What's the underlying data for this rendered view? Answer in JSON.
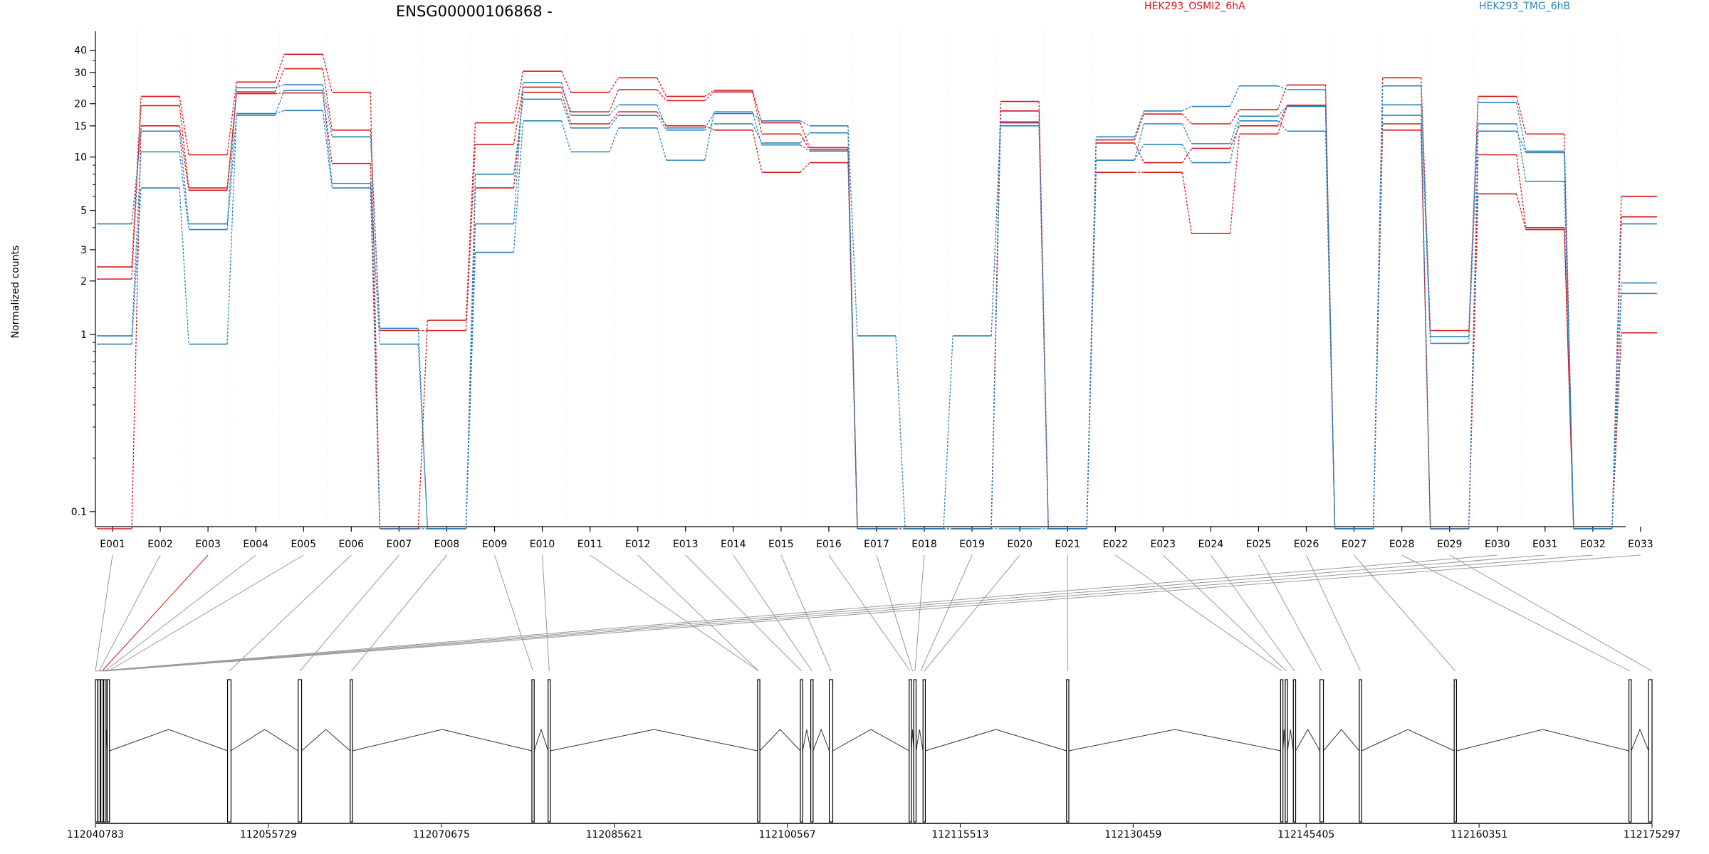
{
  "chart_data": {
    "type": "line",
    "title": "ENSG00000106868 -",
    "ylabel": "Normalized counts",
    "y_scale": "log",
    "ylim": [
      0.08,
      45
    ],
    "yticks": [
      {
        "value": 0.1,
        "label": "0.1"
      },
      {
        "value": 1,
        "label": "1"
      },
      {
        "value": 2,
        "label": "2"
      },
      {
        "value": 3,
        "label": "3"
      },
      {
        "value": 5,
        "label": "5"
      },
      {
        "value": 10,
        "label": "10"
      },
      {
        "value": 15,
        "label": "15"
      },
      {
        "value": 20,
        "label": "20"
      },
      {
        "value": 30,
        "label": "30"
      },
      {
        "value": 40,
        "label": "40"
      }
    ],
    "categories": [
      "E001",
      "E002",
      "E003",
      "E004",
      "E005",
      "E006",
      "E007",
      "E008",
      "E009",
      "E010",
      "E011",
      "E012",
      "E013",
      "E014",
      "E015",
      "E016",
      "E017",
      "E018",
      "E019",
      "E020",
      "E021",
      "E022",
      "E023",
      "E024",
      "E025",
      "E026",
      "E027",
      "E028",
      "E029",
      "E030",
      "E031",
      "E032",
      "E033"
    ],
    "legend": [
      {
        "label": "HEK293_OSMI2_6hA",
        "color": "#d7191c"
      },
      {
        "label": "HEK293_TMG_6hB",
        "color": "#2b83ba"
      }
    ],
    "series": [
      {
        "group": "HEK293_OSMI2_6hA",
        "color": "#d7191c",
        "values": [
          2.4,
          22,
          10.3,
          26.5,
          38,
          23.2,
          0.08,
          1.2,
          15.6,
          30.5,
          23.2,
          28,
          22,
          23.8,
          15.6,
          11.3,
          0.08,
          0.08,
          0.08,
          20.6,
          0.08,
          12.5,
          17.5,
          15.4,
          18.5,
          25.5,
          0.08,
          28,
          1.05,
          22,
          13.5,
          0.08,
          6
        ]
      },
      {
        "group": "HEK293_OSMI2_6hA",
        "color": "#d7191c",
        "values": [
          2.05,
          19.5,
          6.7,
          23.3,
          31.5,
          14.2,
          1.05,
          1.05,
          11.8,
          24.8,
          18,
          24,
          20.8,
          23.3,
          13.5,
          11,
          0.08,
          0.08,
          0.08,
          18.2,
          0.08,
          12,
          9.3,
          11.2,
          15,
          19.6,
          0.08,
          15.4,
          0.08,
          10.3,
          4,
          0.08,
          4.6
        ]
      },
      {
        "group": "HEK293_OSMI2_6hA",
        "color": "#d7191c",
        "values": [
          0.08,
          15,
          6.5,
          22.8,
          23,
          9.2,
          0.08,
          0.08,
          6.7,
          23.2,
          15.4,
          18,
          15,
          14.2,
          8.2,
          9.3,
          0.08,
          0.08,
          0.08,
          15.6,
          0.08,
          8.2,
          8.2,
          3.7,
          13.5,
          19.4,
          0.08,
          14.2,
          0.08,
          6.2,
          3.9,
          0.08,
          1.02
        ]
      },
      {
        "group": "HEK293_TMG_6hB",
        "color": "#2b83ba",
        "values": [
          4.2,
          14,
          4.2,
          24.6,
          25.6,
          13,
          1.08,
          0.08,
          4.2,
          26.3,
          17.2,
          19.7,
          14.6,
          17.6,
          16,
          15,
          0.98,
          0.08,
          0.98,
          15.8,
          0.08,
          13,
          18.2,
          19.3,
          25.2,
          24,
          0.08,
          25.2,
          0.97,
          20.3,
          10.8,
          0.08,
          4.2
        ]
      },
      {
        "group": "HEK293_TMG_6hB",
        "color": "#2b83ba",
        "values": [
          0.98,
          10.7,
          3.9,
          17.2,
          23.8,
          7.1,
          0.88,
          0.08,
          8,
          21.2,
          14.6,
          17.2,
          14.2,
          15.4,
          12,
          13.7,
          0.08,
          0.08,
          0.08,
          15,
          0.08,
          9.6,
          15.4,
          11.9,
          17,
          19.3,
          0.08,
          19.7,
          0.89,
          15.4,
          7.3,
          0.08,
          1.95
        ]
      },
      {
        "group": "HEK293_TMG_6hB",
        "color": "#2b83ba",
        "values": [
          0.88,
          6.7,
          0.88,
          17.6,
          18.3,
          6.7,
          0.08,
          0.08,
          2.9,
          16,
          10.7,
          14.6,
          9.6,
          18,
          11.7,
          10.8,
          0.08,
          0.08,
          0.08,
          0.08,
          0.08,
          9.6,
          11.8,
          9.3,
          16,
          14,
          0.08,
          17.2,
          0.08,
          14,
          10.6,
          0.08,
          1.7
        ]
      }
    ],
    "genomic_axis": {
      "labels": [
        "112040783",
        "112055729",
        "112070675",
        "112085621",
        "112100567",
        "112115513",
        "112130459",
        "112145405",
        "112160351",
        "112175297"
      ],
      "min": 112040783,
      "max": 112175297,
      "exons": [
        [
          112040783,
          112040983
        ],
        [
          112041000,
          112041200
        ],
        [
          112041250,
          112041450
        ],
        [
          112041500,
          112041700
        ],
        [
          112041800,
          112042000
        ],
        [
          112052200,
          112052500
        ],
        [
          112058300,
          112058600
        ],
        [
          112062800,
          112063000
        ],
        [
          112078500,
          112078700
        ],
        [
          112079900,
          112080100
        ],
        [
          112098000,
          112098200
        ],
        [
          112101700,
          112101900
        ],
        [
          112102600,
          112102800
        ],
        [
          112104200,
          112104500
        ],
        [
          112111100,
          112111300
        ],
        [
          112111500,
          112111700
        ],
        [
          112112300,
          112112500
        ],
        [
          112124700,
          112124900
        ],
        [
          112143200,
          112143400
        ],
        [
          112143600,
          112143800
        ],
        [
          112144300,
          112144500
        ],
        [
          112146600,
          112146900
        ],
        [
          112150000,
          112150200
        ],
        [
          112158200,
          112158400
        ],
        [
          112173300,
          112173500
        ],
        [
          112175000,
          112175297
        ]
      ],
      "connector_targets": [
        112040783,
        112041100,
        112041350,
        112041600,
        112041900,
        112052350,
        112058450,
        112062900,
        112078600,
        112080000,
        112098100,
        112098100,
        112101800,
        112102700,
        112104350,
        112111200,
        112111400,
        112111600,
        112112100,
        112112400,
        112124800,
        112143300,
        112143700,
        112144400,
        112146750,
        112150100,
        112158300,
        112173400,
        112175297,
        112040783,
        112041100,
        112041350,
        112041600
      ],
      "connector_highlight_index": 2
    }
  }
}
